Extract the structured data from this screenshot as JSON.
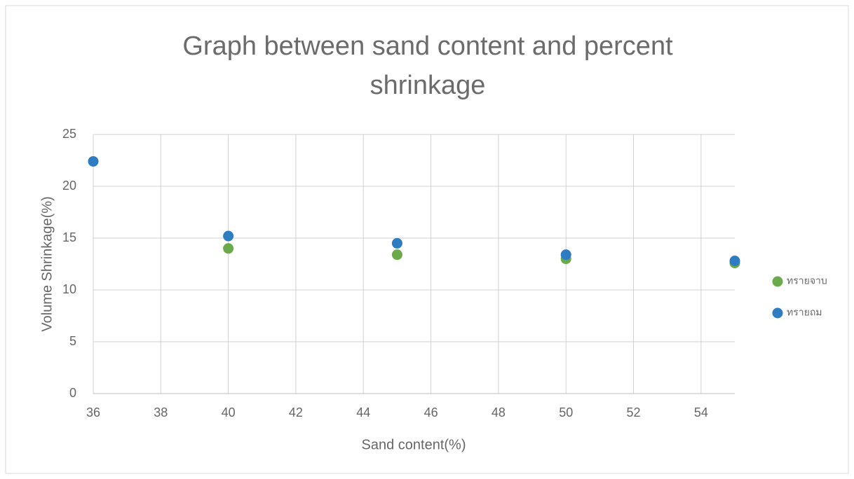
{
  "chart_data": {
    "type": "scatter",
    "title": "Graph between sand content and percent shrinkage",
    "x_label": "Sand content(%)",
    "y_label": "Volume Shrinkage(%)",
    "xlim": [
      36,
      55
    ],
    "xticks": [
      36,
      38,
      40,
      42,
      44,
      46,
      48,
      50,
      52,
      54
    ],
    "ylim": [
      0,
      25
    ],
    "yticks": [
      0,
      5,
      10,
      15,
      20,
      25
    ],
    "grid": true,
    "legend": "right",
    "series": [
      {
        "name": "ทรายจาบ",
        "color": "#6aaa4a",
        "x": [
          40,
          45,
          50,
          55
        ],
        "values": [
          14.0,
          13.4,
          13.0,
          12.6
        ]
      },
      {
        "name": "ทรายถม",
        "color": "#2e7cc2",
        "x": [
          36,
          40,
          45,
          50,
          55
        ],
        "values": [
          22.4,
          15.2,
          14.5,
          13.4,
          12.8
        ]
      }
    ]
  }
}
